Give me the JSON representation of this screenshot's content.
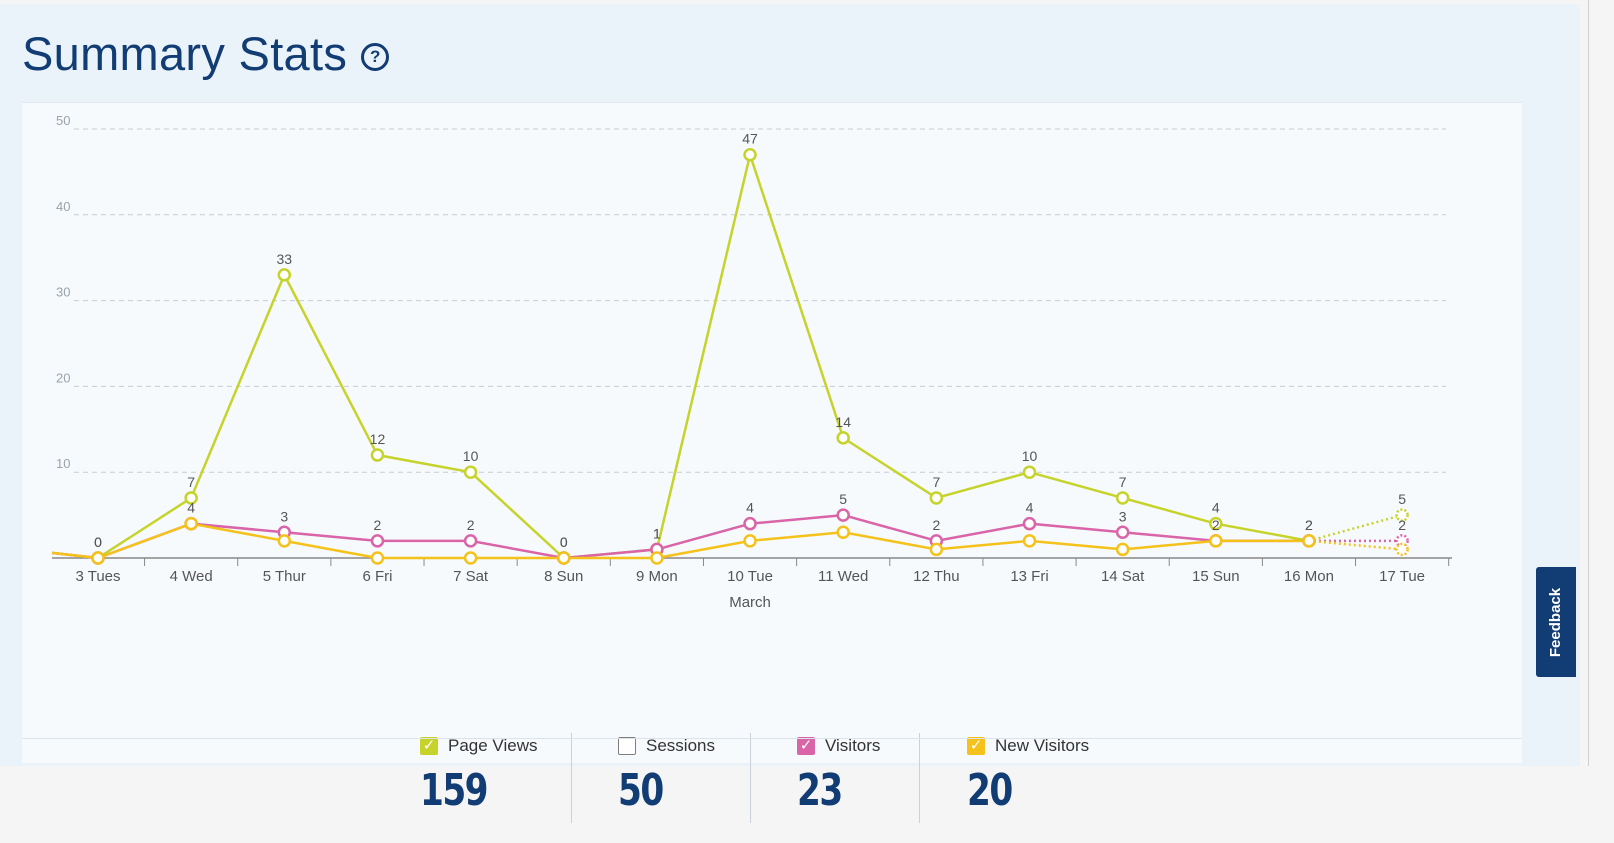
{
  "header": {
    "title": "Summary Stats",
    "help_icon": "question-circle-icon"
  },
  "chart_data": {
    "type": "line",
    "title": "",
    "xlabel": "March",
    "ylabel": "",
    "ylim": [
      0,
      50
    ],
    "yticks": [
      10,
      20,
      30,
      40,
      50
    ],
    "categories": [
      "3 Tues",
      "4 Wed",
      "5 Thur",
      "6 Fri",
      "7 Sat",
      "8 Sun",
      "9 Mon",
      "10 Tue",
      "11 Wed",
      "12 Thu",
      "13 Fri",
      "14 Sat",
      "15 Sun",
      "16 Mon",
      "17 Tue"
    ],
    "series": [
      {
        "name": "Page Views",
        "color": "#c6d32a",
        "values": [
          0,
          7,
          33,
          12,
          10,
          0,
          1,
          47,
          14,
          7,
          10,
          7,
          4,
          2,
          5
        ],
        "labels": true,
        "projected_last": true
      },
      {
        "name": "Visitors",
        "color": "#d964a8",
        "values": [
          0,
          4,
          3,
          2,
          2,
          0,
          1,
          4,
          5,
          2,
          4,
          3,
          2,
          2,
          2
        ],
        "labels": true,
        "projected_last": true
      },
      {
        "name": "New Visitors",
        "color": "#f4c21a",
        "values": [
          0,
          4,
          2,
          0,
          0,
          0,
          0,
          2,
          3,
          1,
          2,
          1,
          2,
          2,
          1
        ],
        "labels": false,
        "projected_last": true
      }
    ]
  },
  "legend": [
    {
      "label": "Page Views",
      "value": "159",
      "checked": true,
      "color": "#c6d32a"
    },
    {
      "label": "Sessions",
      "value": "50",
      "checked": false,
      "color": "#ffffff"
    },
    {
      "label": "Visitors",
      "value": "23",
      "checked": true,
      "color": "#d964a8"
    },
    {
      "label": "New Visitors",
      "value": "20",
      "checked": true,
      "color": "#f4c21a"
    }
  ],
  "feedback": {
    "label": "Feedback"
  }
}
